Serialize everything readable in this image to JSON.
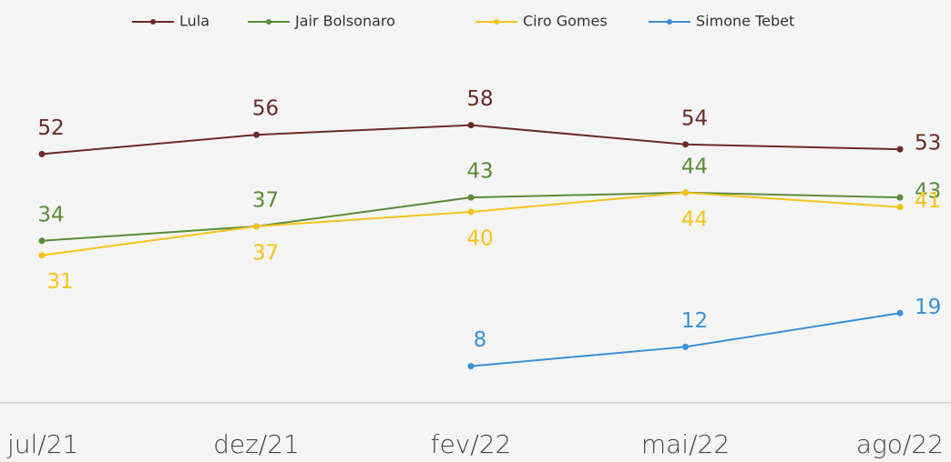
{
  "chart_data": {
    "type": "line",
    "categories": [
      "jul/21",
      "dez/21",
      "fev/22",
      "mai/22",
      "ago/22"
    ],
    "series": [
      {
        "name": "Lula",
        "color": "#6b2a2a",
        "values": [
          52,
          56,
          58,
          54,
          53
        ]
      },
      {
        "name": "Jair Bolsonaro",
        "color": "#5b8c3a",
        "values": [
          34,
          37,
          43,
          44,
          43
        ]
      },
      {
        "name": "Ciro Gomes",
        "color": "#f5c31a",
        "values": [
          31,
          37,
          40,
          44,
          41
        ]
      },
      {
        "name": "Simone Tebet",
        "color": "#3a8fd6",
        "values": [
          null,
          null,
          8,
          12,
          19
        ]
      }
    ],
    "ylim": [
      0,
      80
    ],
    "legend": "top"
  }
}
